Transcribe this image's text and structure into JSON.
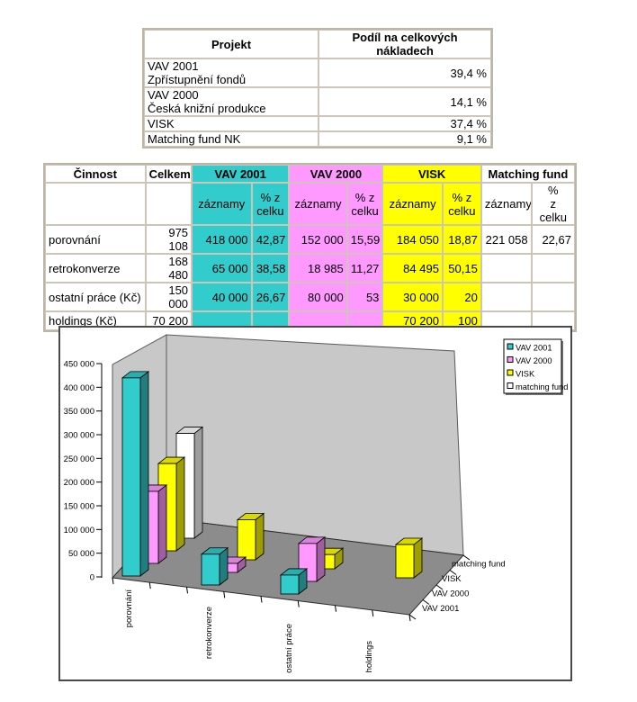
{
  "colors": {
    "teal": "#33cccc",
    "pink": "#ff99ff",
    "yellow": "#ffff00",
    "white_series": "#ffffff",
    "wall": "#c8c8c8",
    "floor": "#8c8c8c",
    "table_border": "#c1b9ab"
  },
  "table1": {
    "columns": [
      "Projekt",
      "Podíl na celkových nákladech"
    ],
    "rows": [
      {
        "project": "VAV 2001\nZpřístupnění fondů",
        "share": "39,4 %"
      },
      {
        "project": "VAV 2000\nČeská knižní produkce",
        "share": "14,1 %"
      },
      {
        "project": "VISK",
        "share": "37,4 %"
      },
      {
        "project": "Matching fund NK",
        "share": "9,1 %"
      }
    ]
  },
  "table2": {
    "col1_header": "Činnost",
    "col2_header": "Celkem",
    "groups": [
      {
        "label": "VAV 2001",
        "color": "#33cccc"
      },
      {
        "label": "VAV 2000",
        "color": "#ff99ff"
      },
      {
        "label": "VISK",
        "color": "#ffff00"
      },
      {
        "label": "Matching fund",
        "color": ""
      }
    ],
    "subheaders": [
      "záznamy",
      "% z\ncelku",
      "záznamy",
      "% z\ncelku",
      "záznamy",
      "% z\ncelku",
      "záznamy",
      "%\nz celku"
    ],
    "rows": [
      {
        "label": "porovnání",
        "celkem": "975 108",
        "cells": [
          "418 000",
          "42,87",
          "152 000",
          "15,59",
          "184 050",
          "18,87",
          "221 058",
          "22,67"
        ]
      },
      {
        "label": "retrokonverze",
        "celkem": "168 480",
        "cells": [
          "65 000",
          "38,58",
          "18 985",
          "11,27",
          "84 495",
          "50,15",
          "",
          ""
        ]
      },
      {
        "label": "ostatní práce (Kč)",
        "celkem": "150 000",
        "cells": [
          "40 000",
          "26,67",
          "80 000",
          "53",
          "30 000",
          "20",
          "",
          ""
        ]
      },
      {
        "label": "holdings (Kč)",
        "celkem": "70 200",
        "cells": [
          "",
          "",
          "",
          "",
          "70 200",
          "100",
          "",
          ""
        ]
      }
    ]
  },
  "chart_data": {
    "type": "bar",
    "projection": "3d-columns",
    "categories": [
      "porovnání",
      "retrokonverze",
      "ostatní práce",
      "holdings"
    ],
    "series": [
      {
        "name": "VAV 2001",
        "color": "#33cccc",
        "values": [
          418000,
          65000,
          40000,
          0
        ]
      },
      {
        "name": "VAV 2000",
        "color": "#ff99ff",
        "values": [
          152000,
          18985,
          80000,
          0
        ]
      },
      {
        "name": "VISK",
        "color": "#ffff00",
        "values": [
          184050,
          84495,
          30000,
          70200
        ]
      },
      {
        "name": "matching fund",
        "color": "#ffffff",
        "values": [
          221058,
          0,
          0,
          0
        ]
      }
    ],
    "title": "",
    "xlabel": "",
    "ylabel": "",
    "ylim": [
      0,
      450000
    ],
    "ytick_step": 50000,
    "ytick_labels": [
      "0",
      "50 000",
      "100 000",
      "150 000",
      "200 000",
      "250 000",
      "300 000",
      "350 000",
      "400 000",
      "450 000"
    ],
    "grid": false,
    "legend_position": "top-right",
    "depth_axis_labels": [
      "VAV 2001",
      "VAV 2000",
      "VISK",
      "matching fund"
    ]
  }
}
